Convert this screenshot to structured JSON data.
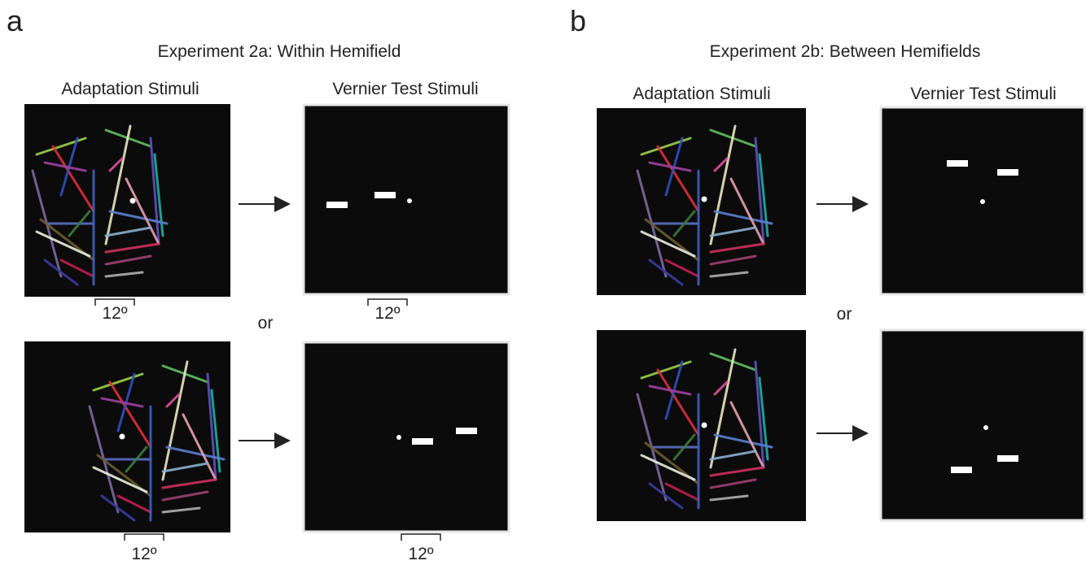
{
  "panel_a": {
    "label": "a",
    "title": "Experiment 2a: Within Hemifield",
    "adaptation_heading": "Adaptation Stimuli",
    "test_heading": "Vernier Test Stimuli",
    "separator": "or",
    "distance_labels": [
      "12º",
      "12º",
      "12º",
      "12º"
    ]
  },
  "panel_b": {
    "label": "b",
    "title": "Experiment 2b: Between Hemifields",
    "adaptation_heading": "Adaptation Stimuli",
    "test_heading": "Vernier Test Stimuli",
    "separator": "or"
  }
}
